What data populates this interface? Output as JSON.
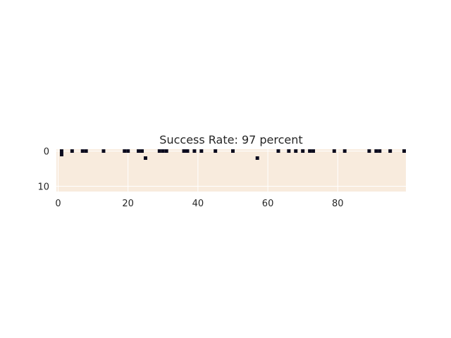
{
  "chart_data": {
    "type": "heatmap",
    "title": "Success Rate: 97 percent",
    "xlabel": "",
    "ylabel": "",
    "xlim": [
      -0.5,
      99.5
    ],
    "ylim": [
      11.5,
      -0.5
    ],
    "x_ticks": [
      0,
      20,
      40,
      60,
      80
    ],
    "y_ticks": [
      0,
      10
    ],
    "grid": true,
    "colors": {
      "background": "#f8ebdd",
      "failure": "#0b0b1e",
      "grid": "#ffffff"
    },
    "failures": [
      {
        "x": 1,
        "y": 0
      },
      {
        "x": 1,
        "y": 1
      },
      {
        "x": 4,
        "y": 0
      },
      {
        "x": 7,
        "y": 0
      },
      {
        "x": 8,
        "y": 0
      },
      {
        "x": 13,
        "y": 0
      },
      {
        "x": 19,
        "y": 0
      },
      {
        "x": 20,
        "y": 0
      },
      {
        "x": 23,
        "y": 0
      },
      {
        "x": 24,
        "y": 0
      },
      {
        "x": 25,
        "y": 2
      },
      {
        "x": 29,
        "y": 0
      },
      {
        "x": 30,
        "y": 0
      },
      {
        "x": 31,
        "y": 0
      },
      {
        "x": 36,
        "y": 0
      },
      {
        "x": 37,
        "y": 0
      },
      {
        "x": 39,
        "y": 0
      },
      {
        "x": 41,
        "y": 0
      },
      {
        "x": 45,
        "y": 0
      },
      {
        "x": 50,
        "y": 0
      },
      {
        "x": 57,
        "y": 2
      },
      {
        "x": 63,
        "y": 0
      },
      {
        "x": 66,
        "y": 0
      },
      {
        "x": 68,
        "y": 0
      },
      {
        "x": 70,
        "y": 0
      },
      {
        "x": 72,
        "y": 0
      },
      {
        "x": 73,
        "y": 0
      },
      {
        "x": 79,
        "y": 0
      },
      {
        "x": 82,
        "y": 0
      },
      {
        "x": 89,
        "y": 0
      },
      {
        "x": 91,
        "y": 0
      },
      {
        "x": 92,
        "y": 0
      },
      {
        "x": 95,
        "y": 0
      },
      {
        "x": 99,
        "y": 0
      }
    ]
  }
}
